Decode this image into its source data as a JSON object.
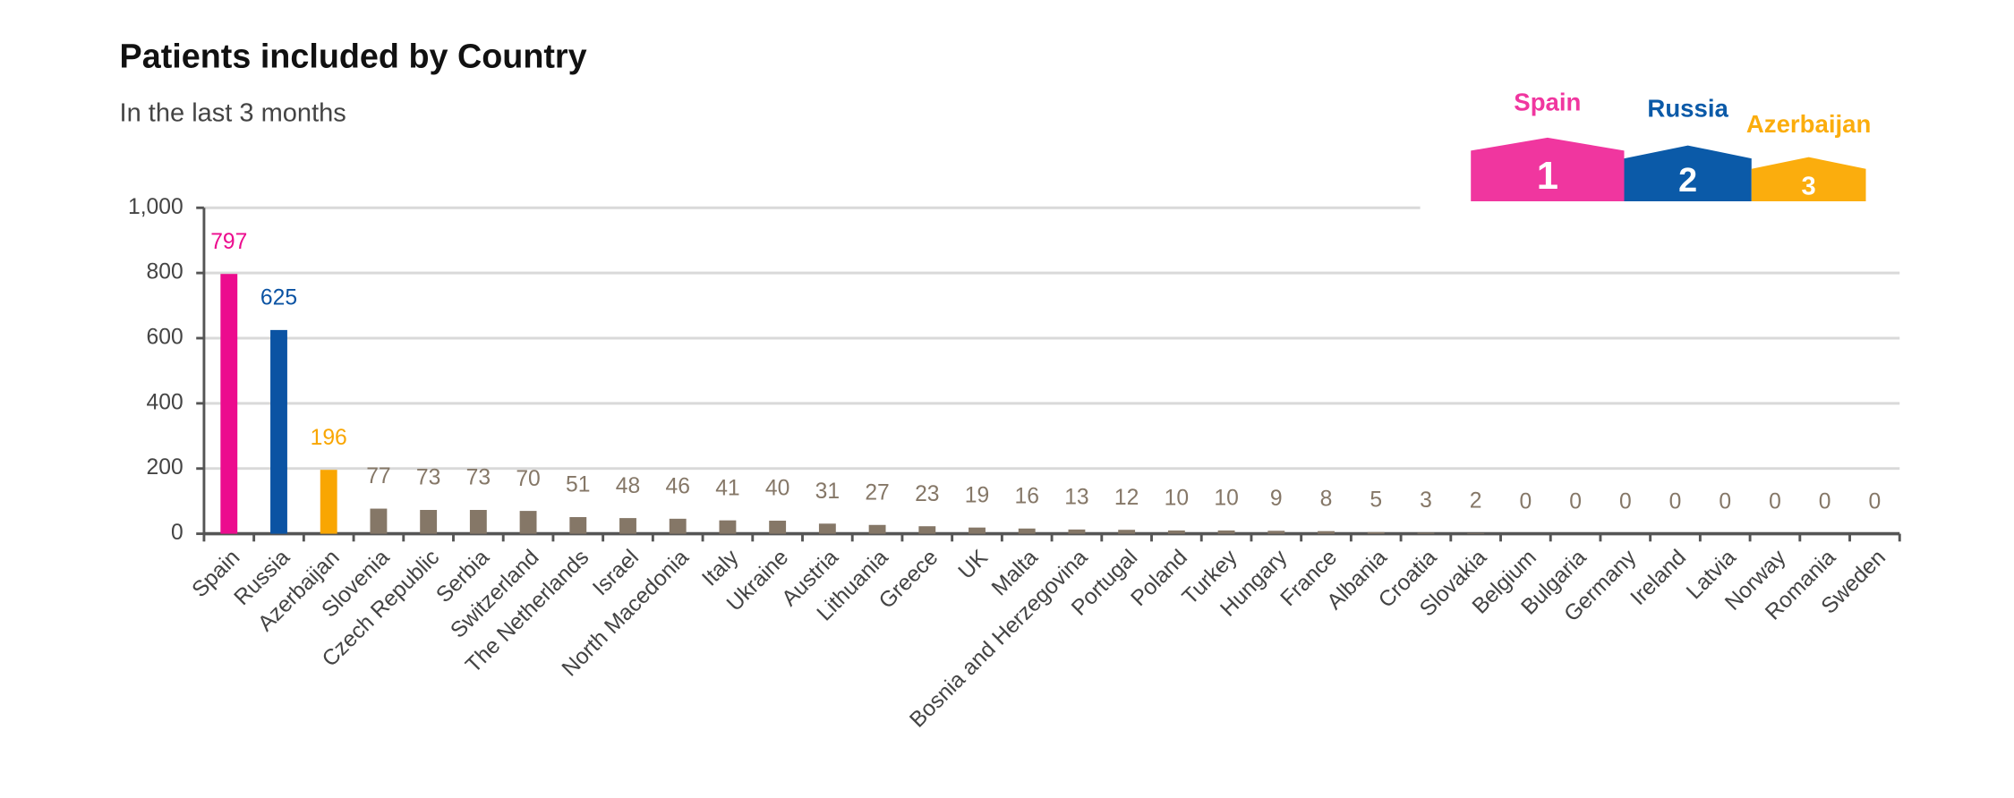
{
  "chart_data": {
    "type": "bar",
    "title": "Patients included by Country",
    "subtitle": "In the last 3 months",
    "categories": [
      "Spain",
      "Russia",
      "Azerbaijan",
      "Slovenia",
      "Czech Republic",
      "Serbia",
      "Switzerland",
      "The Netherlands",
      "Israel",
      "North Macedonia",
      "Italy",
      "Ukraine",
      "Austria",
      "Lithuania",
      "Greece",
      "UK",
      "Malta",
      "Bosnia and Herzegovina",
      "Portugal",
      "Poland",
      "Turkey",
      "Hungary",
      "France",
      "Albania",
      "Croatia",
      "Slovakia",
      "Belgium",
      "Bulgaria",
      "Germany",
      "Ireland",
      "Latvia",
      "Norway",
      "Romania",
      "Sweden"
    ],
    "values": [
      797,
      625,
      196,
      77,
      73,
      73,
      70,
      51,
      48,
      46,
      41,
      40,
      31,
      27,
      23,
      19,
      16,
      13,
      12,
      10,
      10,
      9,
      8,
      5,
      3,
      2,
      0,
      0,
      0,
      0,
      0,
      0,
      0,
      0
    ],
    "colors": [
      "#ec0c8e",
      "#0b53a3",
      "#f9a602",
      "#857767",
      "#857767",
      "#857767",
      "#857767",
      "#857767",
      "#857767",
      "#857767",
      "#857767",
      "#857767",
      "#857767",
      "#857767",
      "#857767",
      "#857767",
      "#857767",
      "#857767",
      "#857767",
      "#857767",
      "#857767",
      "#857767",
      "#857767",
      "#857767",
      "#857767",
      "#857767",
      "#857767",
      "#857767",
      "#857767",
      "#857767",
      "#857767",
      "#857767",
      "#857767",
      "#857767"
    ],
    "ylim": [
      0,
      1000
    ],
    "yticks": [
      0,
      200,
      400,
      600,
      800,
      {
        "value": 1000,
        "label": "1,000"
      }
    ],
    "grid": true
  },
  "podium": [
    {
      "name": "Spain",
      "rank": "1",
      "color": "#f0369f"
    },
    {
      "name": "Russia",
      "rank": "2",
      "color": "#0b5aa8"
    },
    {
      "name": "Azerbaijan",
      "rank": "3",
      "color": "#fbad0d"
    }
  ]
}
